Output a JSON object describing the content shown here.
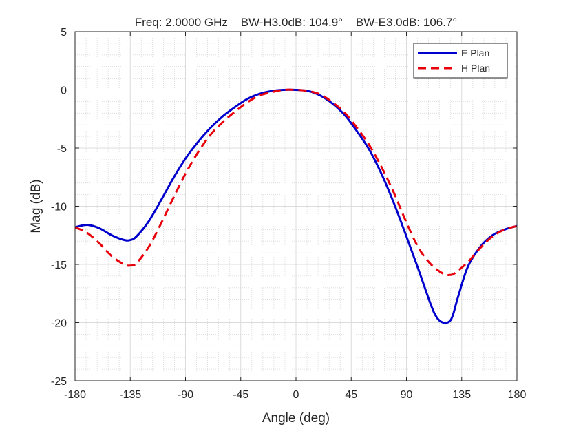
{
  "chart_data": {
    "type": "line",
    "title": "Freq: 2.0000 GHz    BW-H3.0dB: 104.9°    BW-E3.0dB: 106.7°",
    "xlabel": "Angle (deg)",
    "ylabel": "Mag (dB)",
    "xlim": [
      -180,
      180
    ],
    "ylim": [
      -25,
      5
    ],
    "xticks": [
      -180,
      -135,
      -90,
      -45,
      0,
      45,
      90,
      135,
      180
    ],
    "yticks": [
      5,
      0,
      -5,
      -10,
      -15,
      -20,
      -25
    ],
    "grid": "major and minor",
    "legend_position": "top-right",
    "series": [
      {
        "name": "E Plan",
        "color": "#0000cc",
        "style": "solid",
        "x": [
          -180,
          -170,
          -160,
          -150,
          -140,
          -135,
          -130,
          -120,
          -110,
          -100,
          -90,
          -80,
          -70,
          -60,
          -50,
          -40,
          -30,
          -20,
          -10,
          0,
          10,
          20,
          30,
          40,
          50,
          60,
          70,
          80,
          90,
          100,
          110,
          115,
          120,
          125,
          128,
          132,
          140,
          150,
          160,
          170,
          180
        ],
        "y": [
          -11.8,
          -11.6,
          -11.9,
          -12.5,
          -12.9,
          -12.9,
          -12.6,
          -11.3,
          -9.5,
          -7.6,
          -5.9,
          -4.5,
          -3.3,
          -2.3,
          -1.5,
          -0.8,
          -0.35,
          -0.1,
          0,
          0,
          -0.1,
          -0.5,
          -1.2,
          -2.2,
          -3.6,
          -5.2,
          -7.3,
          -9.8,
          -12.6,
          -15.5,
          -18.5,
          -19.6,
          -20.0,
          -19.9,
          -19.3,
          -17.8,
          -15.2,
          -13.5,
          -12.5,
          -12.0,
          -11.7
        ]
      },
      {
        "name": "H Plan",
        "color": "#e8000b",
        "style": "dashed",
        "x": [
          -180,
          -170,
          -160,
          -150,
          -140,
          -135,
          -130,
          -120,
          -110,
          -100,
          -90,
          -80,
          -70,
          -60,
          -50,
          -40,
          -30,
          -20,
          -10,
          0,
          10,
          20,
          30,
          40,
          50,
          60,
          70,
          80,
          90,
          100,
          110,
          120,
          126,
          130,
          140,
          150,
          160,
          170,
          180
        ],
        "y": [
          -11.8,
          -12.3,
          -13.2,
          -14.3,
          -15.0,
          -15.1,
          -14.9,
          -13.5,
          -11.5,
          -9.3,
          -7.2,
          -5.4,
          -3.9,
          -2.8,
          -1.9,
          -1.1,
          -0.5,
          -0.2,
          0,
          0,
          -0.1,
          -0.4,
          -1.1,
          -2.0,
          -3.3,
          -4.8,
          -6.7,
          -8.9,
          -11.4,
          -13.6,
          -15.0,
          -15.8,
          -15.9,
          -15.7,
          -14.8,
          -13.6,
          -12.6,
          -12.0,
          -11.7
        ]
      }
    ]
  }
}
